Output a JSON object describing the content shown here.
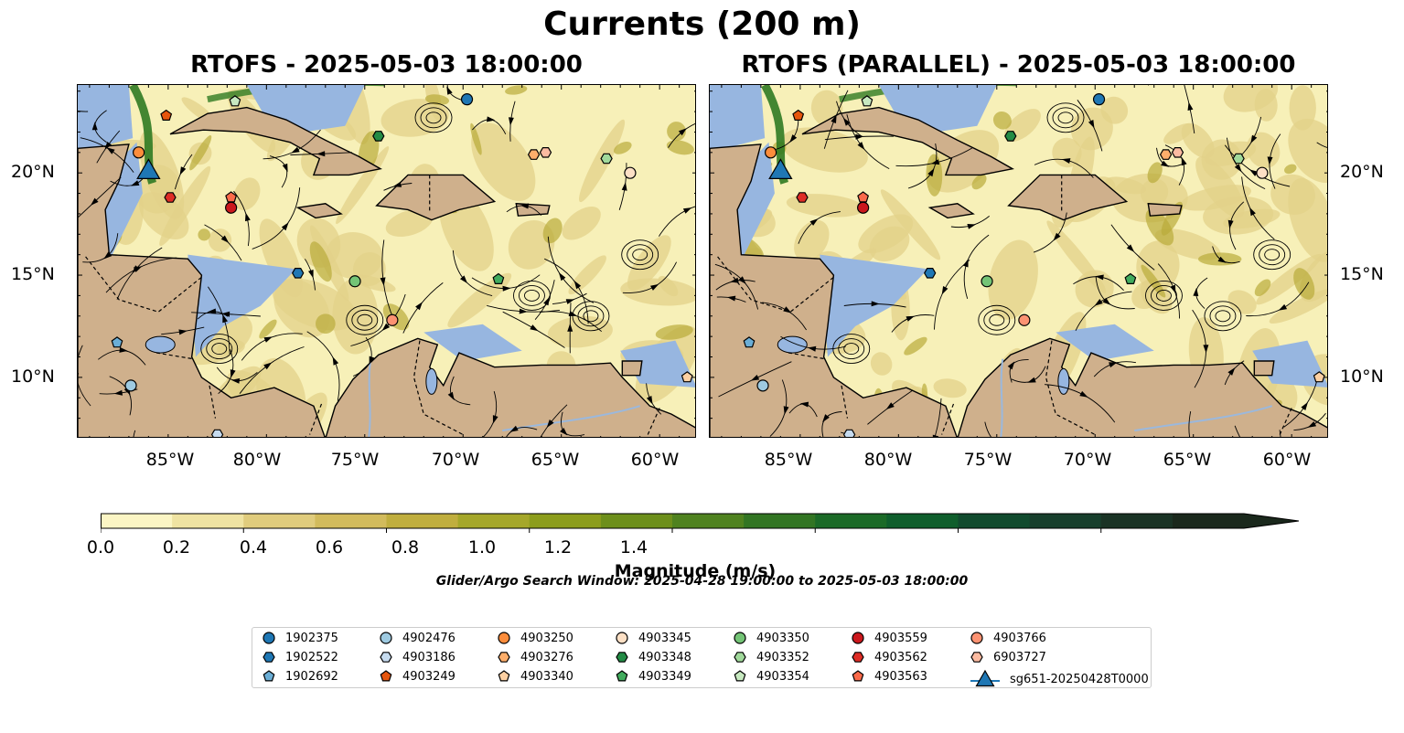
{
  "title": "Currents (200 m)",
  "panels": [
    {
      "title": "RTOFS - 2025-05-03 18:00:00"
    },
    {
      "title": "RTOFS (PARALLEL) - 2025-05-03 18:00:00"
    }
  ],
  "axes": {
    "lon_labels": [
      "85°W",
      "80°W",
      "75°W",
      "70°W",
      "65°W",
      "60°W"
    ],
    "lat_labels": [
      "20°N",
      "15°N",
      "10°N"
    ]
  },
  "colorbar": {
    "title": "Magnitude (m/s)",
    "tick_labels": [
      "0.0",
      "0.2",
      "0.4",
      "0.6",
      "0.8",
      "1.0",
      "1.2",
      "1.4"
    ],
    "colors": [
      "#fbf5c4",
      "#efe3a2",
      "#e0cc7d",
      "#d2bb5c",
      "#c0ae3e",
      "#a5a72a",
      "#8c9d1c",
      "#6d8f1b",
      "#4f821f",
      "#327523",
      "#1b6a27",
      "#0f5e2c",
      "#114b2e",
      "#173f2c",
      "#1a3325",
      "#1a281c"
    ]
  },
  "search_window": "Glider/Argo Search Window: 2025-04-28 19:00:00 to 2025-05-03 18:00:00",
  "legend": [
    {
      "label": "1902375",
      "color": "#1f77b4",
      "shape": "circle"
    },
    {
      "label": "1902522",
      "color": "#1f77b4",
      "shape": "hexagon"
    },
    {
      "label": "1902692",
      "color": "#6baed6",
      "shape": "pentagon"
    },
    {
      "label": "4902476",
      "color": "#9ecae1",
      "shape": "circle"
    },
    {
      "label": "4903186",
      "color": "#c6dbef",
      "shape": "hexagon"
    },
    {
      "label": "4903249",
      "color": "#e6550d",
      "shape": "pentagon"
    },
    {
      "label": "4903250",
      "color": "#fd8d3c",
      "shape": "circle"
    },
    {
      "label": "4903276",
      "color": "#fdae6b",
      "shape": "hexagon"
    },
    {
      "label": "4903340",
      "color": "#fdd0a2",
      "shape": "pentagon"
    },
    {
      "label": "4903345",
      "color": "#fde0c5",
      "shape": "circle"
    },
    {
      "label": "4903348",
      "color": "#238b45",
      "shape": "hexagon"
    },
    {
      "label": "4903349",
      "color": "#41ab5d",
      "shape": "pentagon"
    },
    {
      "label": "4903350",
      "color": "#74c476",
      "shape": "circle"
    },
    {
      "label": "4903352",
      "color": "#a1d99b",
      "shape": "hexagon"
    },
    {
      "label": "4903354",
      "color": "#c7e9c0",
      "shape": "pentagon"
    },
    {
      "label": "4903559",
      "color": "#cb181d",
      "shape": "circle"
    },
    {
      "label": "4903562",
      "color": "#de2d26",
      "shape": "hexagon"
    },
    {
      "label": "4903563",
      "color": "#fb6a4a",
      "shape": "pentagon"
    },
    {
      "label": "4903766",
      "color": "#fc9272",
      "shape": "circle"
    },
    {
      "label": "6903727",
      "color": "#fcbba1",
      "shape": "hexagon"
    },
    {
      "label": "sg651-20250428T0000",
      "color": "#1f77b4",
      "shape": "triangle"
    }
  ],
  "map_colors": {
    "ocean_high": "#f7f0b8",
    "ocean_mid": "#e3d28a",
    "ocean_strong": "#b9ab3b",
    "ocean_jet": "#2f7a22",
    "land": "#cfb08c",
    "shelf": "#97b6e0"
  },
  "floats": [
    {
      "id": "1902375",
      "lon": -69.8,
      "lat": 23.6
    },
    {
      "id": "1902522",
      "lon": -78.4,
      "lat": 15.1
    },
    {
      "id": "1902692",
      "lon": -87.6,
      "lat": 11.7
    },
    {
      "id": "4902476",
      "lon": -86.9,
      "lat": 9.6
    },
    {
      "id": "4903186",
      "lon": -82.5,
      "lat": 7.2
    },
    {
      "id": "4903249",
      "lon": -85.1,
      "lat": 22.8
    },
    {
      "id": "4903250",
      "lon": -86.5,
      "lat": 21.0
    },
    {
      "id": "4903276",
      "lon": -66.4,
      "lat": 20.9
    },
    {
      "id": "4903340",
      "lon": -58.6,
      "lat": 10.0
    },
    {
      "id": "4903345",
      "lon": -61.5,
      "lat": 20.0
    },
    {
      "id": "4903348",
      "lon": -74.3,
      "lat": 21.8
    },
    {
      "id": "4903349",
      "lon": -68.2,
      "lat": 14.8
    },
    {
      "id": "4903350",
      "lon": -75.5,
      "lat": 14.7
    },
    {
      "id": "4903352",
      "lon": -62.7,
      "lat": 20.7
    },
    {
      "id": "4903354",
      "lon": -81.6,
      "lat": 23.5
    },
    {
      "id": "4903559",
      "lon": -81.8,
      "lat": 18.3
    },
    {
      "id": "4903562",
      "lon": -84.9,
      "lat": 18.8
    },
    {
      "id": "4903563",
      "lon": -81.8,
      "lat": 18.8
    },
    {
      "id": "4903766",
      "lon": -73.6,
      "lat": 12.8
    },
    {
      "id": "6903727",
      "lon": -65.8,
      "lat": 21.0
    },
    {
      "id": "sg651-20250428T0000",
      "lon": -86.0,
      "lat": 19.9
    }
  ]
}
